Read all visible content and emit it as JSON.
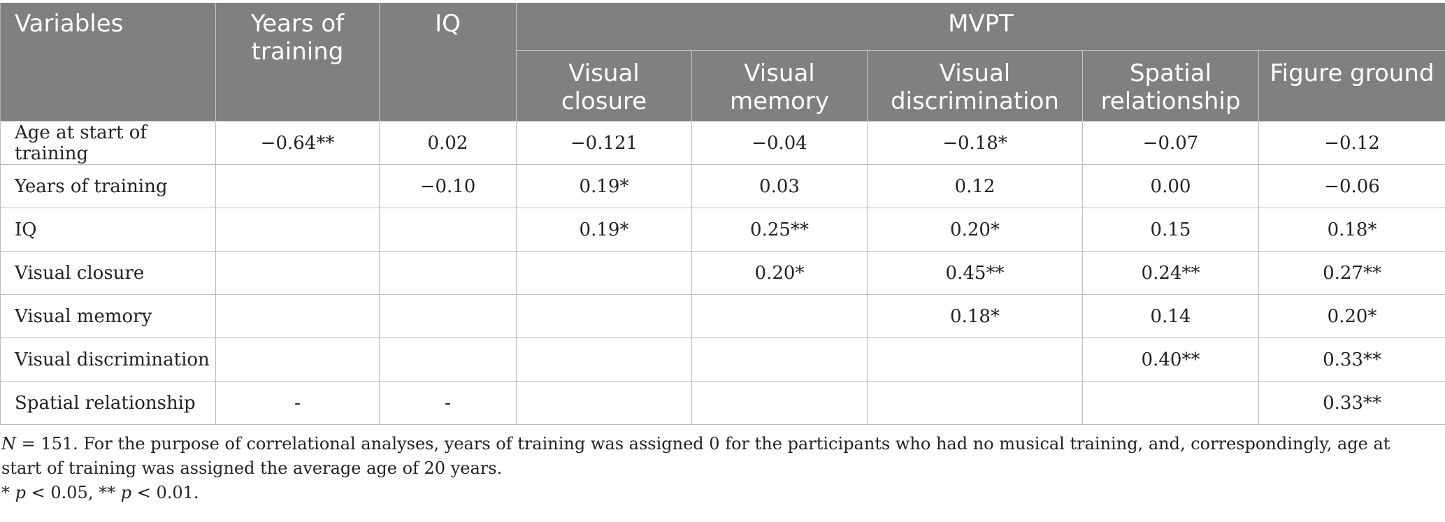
{
  "header": {
    "variables": "Variables",
    "years_of_training": "Years of training",
    "iq": "IQ",
    "group": "MVPT",
    "sub": [
      "Visual closure",
      "Visual memory",
      "Visual discrimination",
      "Spatial relationship",
      "Figure ground"
    ]
  },
  "rows": [
    {
      "label": "Age at start of training",
      "cells": [
        "−0.64**",
        "0.02",
        "−0.121",
        "−0.04",
        "−0.18*",
        "−0.07",
        "−0.12"
      ]
    },
    {
      "label": "Years of training",
      "cells": [
        "",
        "−0.10",
        "0.19*",
        "0.03",
        "0.12",
        "0.00",
        "−0.06"
      ]
    },
    {
      "label": "IQ",
      "cells": [
        "",
        "",
        "0.19*",
        "0.25**",
        "0.20*",
        "0.15",
        "0.18*"
      ]
    },
    {
      "label": "Visual closure",
      "cells": [
        "",
        "",
        "",
        "0.20*",
        "0.45**",
        "0.24**",
        "0.27**"
      ]
    },
    {
      "label": "Visual memory",
      "cells": [
        "",
        "",
        "",
        "",
        "0.18*",
        "0.14",
        "0.20*"
      ]
    },
    {
      "label": "Visual discrimination",
      "cells": [
        "",
        "",
        "",
        "",
        "",
        "0.40**",
        "0.33**"
      ]
    },
    {
      "label": "Spatial relationship",
      "cells": [
        "-",
        "-",
        "",
        "",
        "",
        "",
        "0.33**"
      ]
    }
  ],
  "notes": {
    "n_label": "N",
    "n_text": " = 151. For the purpose of correlational analyses, years of training was assigned 0 for the participants who had no musical training, and, correspondingly, age at start of training was assigned the average age of 20 years.",
    "sig_p1": "p",
    "sig_t1": " < 0.05, ** ",
    "sig_p2": "p",
    "sig_t2": " < 0.01."
  }
}
